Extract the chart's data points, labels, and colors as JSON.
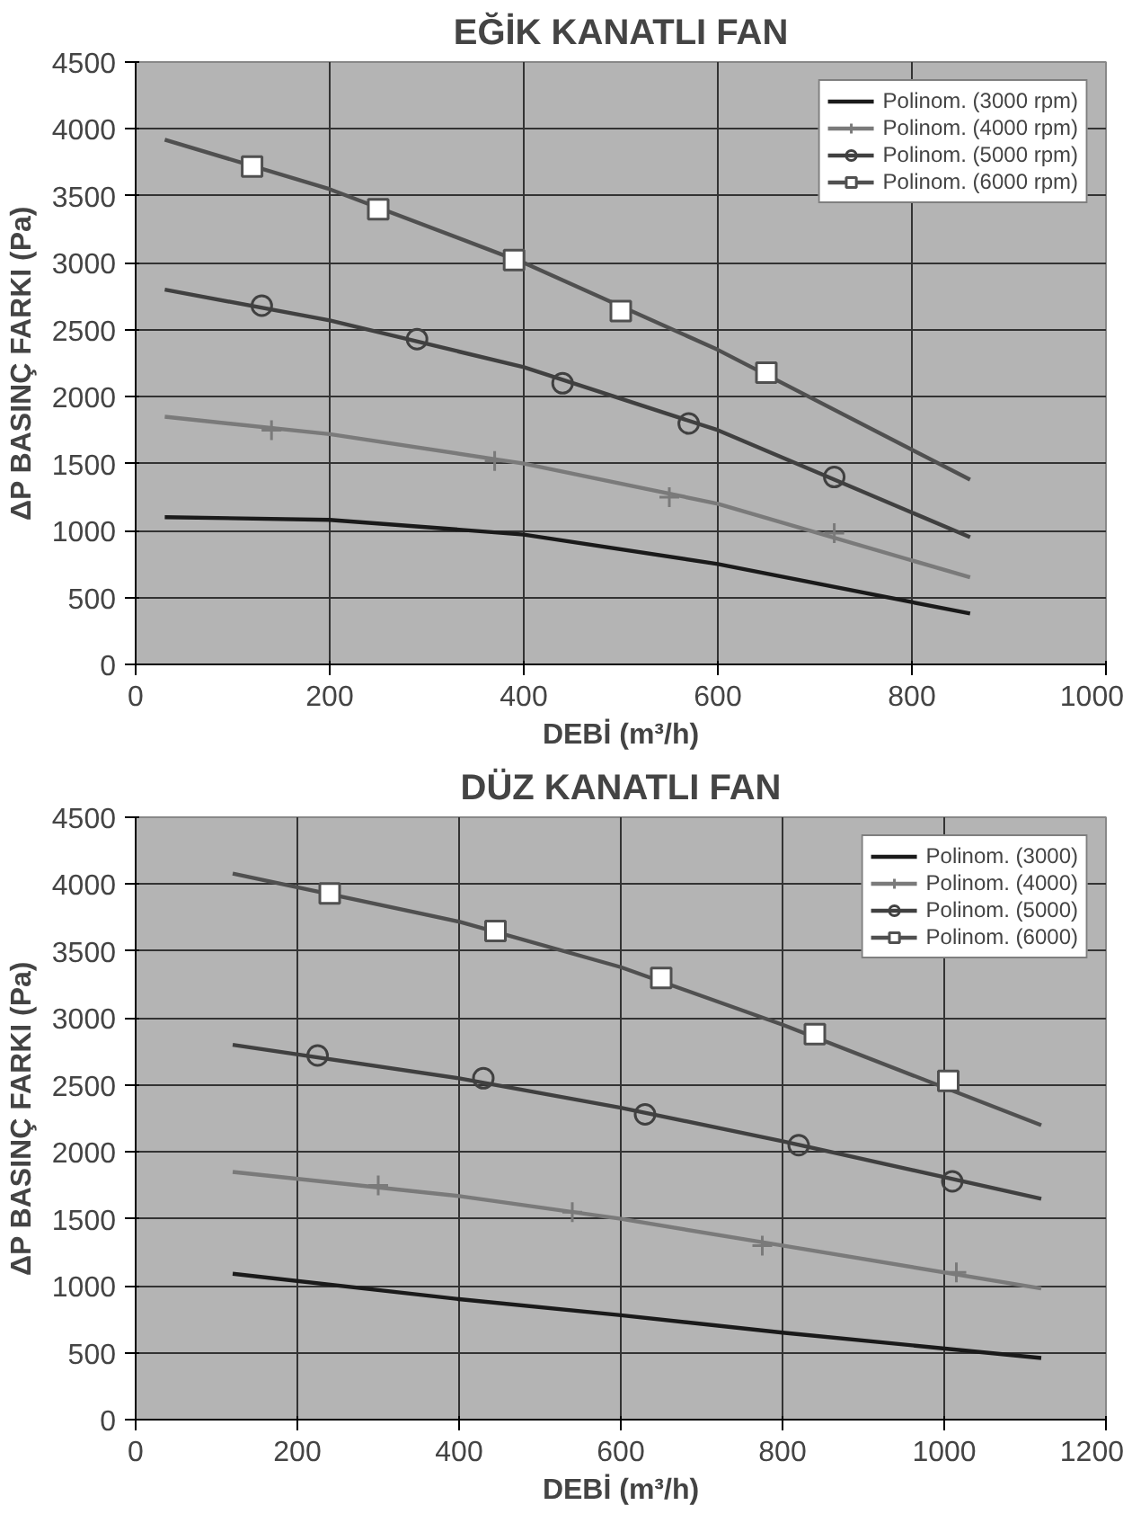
{
  "chart_data": [
    {
      "type": "line",
      "title": "EĞİK KANATLI FAN",
      "xlabel": "DEBİ (m³/h)",
      "ylabel": "ΔP BASINÇ FARKI (Pa)",
      "xlim": [
        0,
        1000
      ],
      "xticks": [
        0,
        200,
        400,
        600,
        800,
        1000
      ],
      "ylim": [
        0,
        4500
      ],
      "yticks": [
        0,
        500,
        1000,
        1500,
        2000,
        2500,
        3000,
        3500,
        4000,
        4500
      ],
      "grid": true,
      "legend": "right",
      "series": [
        {
          "name": "Polinom. (3000 rpm)",
          "color": "#1a1a1a",
          "x": [
            30,
            200,
            400,
            600,
            860
          ],
          "values": [
            1100,
            1080,
            970,
            750,
            380
          ],
          "marker": "none"
        },
        {
          "name": "Polinom. (4000 rpm)",
          "color": "#7a7a7a",
          "x": [
            30,
            200,
            400,
            600,
            860
          ],
          "values": [
            1850,
            1720,
            1500,
            1200,
            650
          ],
          "marker": "none"
        },
        {
          "type": "scatter",
          "color": "#7a7a7a",
          "x": [
            140,
            370,
            550,
            720
          ],
          "values": [
            1750,
            1520,
            1250,
            980
          ],
          "marker": "cross"
        },
        {
          "name": "Polinom. (5000 rpm)",
          "color": "#404040",
          "x": [
            30,
            200,
            400,
            600,
            860
          ],
          "values": [
            2800,
            2570,
            2220,
            1750,
            950
          ],
          "marker": "none"
        },
        {
          "type": "scatter",
          "color": "#404040",
          "x": [
            130,
            290,
            440,
            570,
            720
          ],
          "values": [
            2680,
            2430,
            2100,
            1800,
            1400
          ],
          "marker": "circle"
        },
        {
          "name": "Polinom. (6000 rpm)",
          "color": "#505050",
          "x": [
            30,
            200,
            400,
            600,
            860
          ],
          "values": [
            3920,
            3550,
            3000,
            2350,
            1380
          ],
          "marker": "none"
        },
        {
          "type": "scatter",
          "color": "#505050",
          "x": [
            120,
            250,
            390,
            500,
            650
          ],
          "values": [
            3720,
            3400,
            3020,
            2640,
            2180
          ],
          "marker": "square"
        }
      ]
    },
    {
      "type": "line",
      "title": "DÜZ KANATLI FAN",
      "xlabel": "DEBİ (m³/h)",
      "ylabel": "ΔP BASINÇ FARKI (Pa)",
      "xlim": [
        0,
        1200
      ],
      "xticks": [
        0,
        200,
        400,
        600,
        800,
        1000,
        1200
      ],
      "ylim": [
        0,
        4500
      ],
      "yticks": [
        0,
        500,
        1000,
        1500,
        2000,
        2500,
        3000,
        3500,
        4000,
        4500
      ],
      "grid": true,
      "legend": "right",
      "series": [
        {
          "name": "Polinom. (3000)",
          "color": "#1a1a1a",
          "x": [
            120,
            400,
            600,
            800,
            1120
          ],
          "values": [
            1090,
            900,
            780,
            650,
            460
          ],
          "marker": "none"
        },
        {
          "name": "Polinom. (4000)",
          "color": "#7a7a7a",
          "x": [
            120,
            400,
            600,
            800,
            1120
          ],
          "values": [
            1850,
            1670,
            1500,
            1300,
            980
          ],
          "marker": "none"
        },
        {
          "type": "scatter",
          "color": "#7a7a7a",
          "x": [
            300,
            540,
            775,
            1015
          ],
          "values": [
            1750,
            1550,
            1300,
            1100
          ],
          "marker": "cross"
        },
        {
          "name": "Polinom. (5000)",
          "color": "#404040",
          "x": [
            120,
            400,
            600,
            800,
            1120
          ],
          "values": [
            2800,
            2550,
            2330,
            2080,
            1650
          ],
          "marker": "none"
        },
        {
          "type": "scatter",
          "color": "#404040",
          "x": [
            225,
            430,
            630,
            820,
            1010
          ],
          "values": [
            2720,
            2550,
            2280,
            2050,
            1780
          ],
          "marker": "circle"
        },
        {
          "name": "Polinom. (6000)",
          "color": "#505050",
          "x": [
            120,
            400,
            600,
            800,
            1120
          ],
          "values": [
            4080,
            3720,
            3380,
            2950,
            2200
          ],
          "marker": "none"
        },
        {
          "type": "scatter",
          "color": "#505050",
          "x": [
            240,
            445,
            650,
            840,
            1005
          ],
          "values": [
            3930,
            3650,
            3300,
            2880,
            2530
          ],
          "marker": "square"
        }
      ]
    }
  ]
}
